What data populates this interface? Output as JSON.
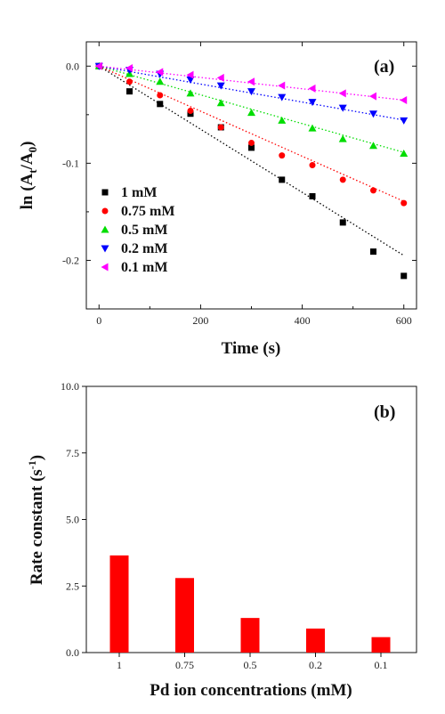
{
  "chart_data": [
    {
      "type": "scatter",
      "panel_label": "(a)",
      "xlabel": "Time (s)",
      "ylabel_main": "ln (A",
      "ylabel_sub1": "t",
      "ylabel_mid": "/A",
      "ylabel_sub2": "0",
      "ylabel_end": ")",
      "xlim": [
        -25,
        625
      ],
      "ylim": [
        -0.25,
        0.025
      ],
      "xticks": [
        0,
        200,
        400,
        600
      ],
      "xtick_labels": [
        "0",
        "200",
        "400",
        "600"
      ],
      "yticks": [
        0.0,
        -0.1,
        -0.2
      ],
      "ytick_labels": [
        "0.0",
        "-0.1",
        "-0.2"
      ],
      "legend_position": "bottom-left",
      "x": [
        0,
        60,
        120,
        180,
        240,
        300,
        360,
        420,
        480,
        540,
        600
      ],
      "series": [
        {
          "name": "1 mM",
          "marker": "square",
          "color": "#000000",
          "fit_slope": -0.000325,
          "values": [
            0.0,
            -0.026,
            -0.039,
            -0.049,
            -0.063,
            -0.084,
            -0.117,
            -0.134,
            -0.161,
            -0.191,
            -0.216
          ]
        },
        {
          "name": "0.75 mM",
          "marker": "circle",
          "color": "#ff0000",
          "fit_slope": -0.000232,
          "values": [
            0.0,
            -0.016,
            -0.03,
            -0.046,
            -0.063,
            -0.079,
            -0.092,
            -0.102,
            -0.117,
            -0.128,
            -0.141
          ]
        },
        {
          "name": "0.5 mM",
          "marker": "triangle-up",
          "color": "#00dd00",
          "fit_slope": -0.000148,
          "values": [
            0.0,
            -0.008,
            -0.016,
            -0.028,
            -0.038,
            -0.048,
            -0.056,
            -0.064,
            -0.075,
            -0.082,
            -0.09
          ]
        },
        {
          "name": "0.2 mM",
          "marker": "triangle-down",
          "color": "#0000ff",
          "fit_slope": -9.25e-05,
          "values": [
            0.0,
            -0.004,
            -0.008,
            -0.014,
            -0.02,
            -0.026,
            -0.032,
            -0.037,
            -0.043,
            -0.049,
            -0.056
          ]
        },
        {
          "name": "0.1 mM",
          "marker": "triangle-left",
          "color": "#ff00ff",
          "fit_slope": -5.83e-05,
          "values": [
            0.0,
            -0.002,
            -0.006,
            -0.009,
            -0.012,
            -0.016,
            -0.02,
            -0.023,
            -0.028,
            -0.031,
            -0.035
          ]
        }
      ]
    },
    {
      "type": "bar",
      "panel_label": "(b)",
      "xlabel": "Pd ion concentrations (mM)",
      "ylabel_main": "Rate constant (s",
      "ylabel_sup": "-1",
      "ylabel_end": ")",
      "categories": [
        "1",
        "0.75",
        "0.5",
        "0.2",
        "0.1"
      ],
      "values": [
        3.65,
        2.8,
        1.3,
        0.9,
        0.58
      ],
      "ylim": [
        0,
        10
      ],
      "yticks": [
        0,
        2.5,
        5,
        7.5,
        10
      ],
      "ytick_labels": [
        "0.0",
        "2.5",
        "5.0",
        "7.5",
        "10.0"
      ],
      "bar_color": "#ff0000"
    }
  ]
}
